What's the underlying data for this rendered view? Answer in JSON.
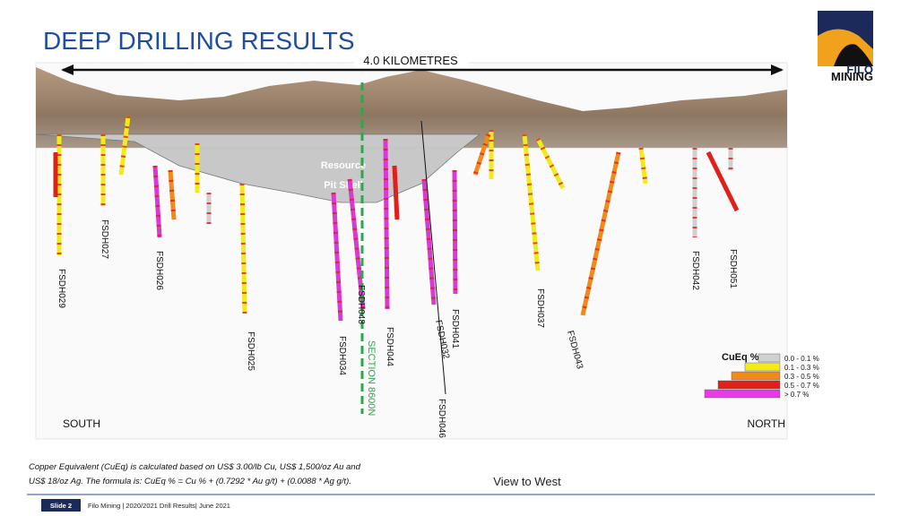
{
  "header": {
    "title": "DEEP DRILLING RESULTS",
    "logo": [
      "FILO",
      "MINING"
    ]
  },
  "section": {
    "scale": "4.0 KILOMETRES",
    "pit_shell": [
      "Resource",
      "Pit Shell"
    ],
    "drill_holes": [
      "FSDH029",
      "FSDH027",
      "FSDH026",
      "FSDH025",
      "FSDH034",
      "FSDH048",
      "FSDH044",
      "FSDH032",
      "FSDH041",
      "FSDH046",
      "FSDH037",
      "FSDH043",
      "FSDH042",
      "FSDH051"
    ],
    "section_line": "SECTION 8600N",
    "south": "SOUTH",
    "north": "NORTH"
  },
  "legend": {
    "title": "CuEq %",
    "ranges": [
      "0.0 - 0.1 %",
      "0.1 - 0.3 %",
      "0.3 - 0.5 %",
      "0.5 - 0.7 %",
      "> 0.7 %"
    ]
  },
  "footnote": [
    "Copper Equivalent (CuEq) is calculated based on US$ 3.00/lb Cu, US$ 1,500/oz Au and",
    "US$ 18/oz Ag.  The formula is:  CuEq % = Cu % + (0.7292 * Au g/t) + (0.0088 * Ag g/t)."
  ],
  "view": "View to West",
  "footer": {
    "slide": "Slide 2",
    "text": "Filo Mining  |  2020/2021 Drill Results|  June 2021"
  }
}
